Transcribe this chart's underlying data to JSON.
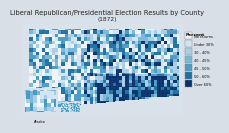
{
  "title": "Liberal Republican/Presidential Election Results by County",
  "subtitle": "(1872)",
  "title_fontsize": 4.8,
  "subtitle_fontsize": 4.2,
  "background_color": "#d8dfe6",
  "map_background": "#ffffff",
  "legend_title": "Percent",
  "legend_labels": [
    "No returns",
    "Under 30%",
    "30 - 40%",
    "40 - 45%",
    "45 - 50%",
    "50 - 60%",
    "Over 60%"
  ],
  "legend_colors": [
    "#f0f4f7",
    "#d0e4f0",
    "#a8cfe4",
    "#7ab8d8",
    "#4a9cc4",
    "#1e6fa0",
    "#08306b"
  ],
  "border_color": "#aaaaaa",
  "us_outline_color": "#888888",
  "county_edge_color": "#cccccc"
}
